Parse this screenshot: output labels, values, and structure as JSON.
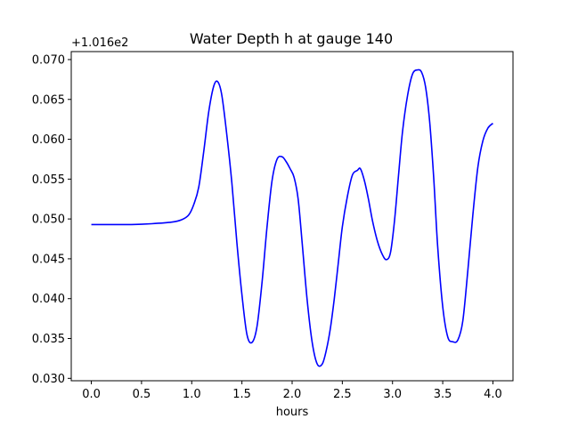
{
  "chart_data": {
    "type": "line",
    "title": "Water Depth h at gauge 140",
    "xlabel": "hours",
    "ylabel": "",
    "y_offset_label": "+1.016e2",
    "xlim": [
      -0.2,
      4.2
    ],
    "ylim": [
      0.0297,
      0.071
    ],
    "x_ticks": [
      0.0,
      0.5,
      1.0,
      1.5,
      2.0,
      2.5,
      3.0,
      3.5,
      4.0
    ],
    "x_tick_labels": [
      "0.0",
      "0.5",
      "1.0",
      "1.5",
      "2.0",
      "2.5",
      "3.0",
      "3.5",
      "4.0"
    ],
    "y_ticks": [
      0.03,
      0.035,
      0.04,
      0.045,
      0.05,
      0.055,
      0.06,
      0.065,
      0.07
    ],
    "y_tick_labels": [
      "0.030",
      "0.035",
      "0.040",
      "0.045",
      "0.050",
      "0.055",
      "0.060",
      "0.065",
      "0.070"
    ],
    "grid": false,
    "series": [
      {
        "color": "#0000ff",
        "x": [
          0.0,
          0.2,
          0.4,
          0.6,
          0.8,
          0.9,
          0.97,
          1.02,
          1.07,
          1.12,
          1.17,
          1.22,
          1.26,
          1.3,
          1.35,
          1.4,
          1.45,
          1.5,
          1.55,
          1.6,
          1.65,
          1.7,
          1.75,
          1.8,
          1.85,
          1.9,
          1.94,
          1.98,
          2.02,
          2.06,
          2.1,
          2.15,
          2.2,
          2.25,
          2.3,
          2.34,
          2.38,
          2.42,
          2.46,
          2.5,
          2.55,
          2.6,
          2.65,
          2.68,
          2.72,
          2.76,
          2.8,
          2.85,
          2.9,
          2.94,
          2.98,
          3.02,
          3.06,
          3.1,
          3.15,
          3.2,
          3.25,
          3.29,
          3.33,
          3.37,
          3.41,
          3.45,
          3.5,
          3.55,
          3.6,
          3.65,
          3.7,
          3.75,
          3.8,
          3.85,
          3.9,
          3.95,
          4.0
        ],
        "y": [
          0.0493,
          0.0493,
          0.0493,
          0.0494,
          0.0496,
          0.0499,
          0.0505,
          0.0518,
          0.054,
          0.0585,
          0.0635,
          0.0667,
          0.0672,
          0.0655,
          0.0605,
          0.0545,
          0.047,
          0.0405,
          0.0355,
          0.0345,
          0.0365,
          0.042,
          0.049,
          0.0548,
          0.0575,
          0.0578,
          0.0572,
          0.0563,
          0.0552,
          0.0525,
          0.047,
          0.0398,
          0.0345,
          0.0318,
          0.0318,
          0.0335,
          0.0362,
          0.04,
          0.0445,
          0.049,
          0.0528,
          0.0555,
          0.0561,
          0.0563,
          0.0548,
          0.0525,
          0.0498,
          0.0472,
          0.0455,
          0.0449,
          0.0458,
          0.0498,
          0.0555,
          0.061,
          0.0655,
          0.0682,
          0.0687,
          0.0684,
          0.0665,
          0.0622,
          0.0552,
          0.0465,
          0.039,
          0.0352,
          0.0346,
          0.0348,
          0.0372,
          0.0435,
          0.0505,
          0.0565,
          0.0598,
          0.0614,
          0.062
        ]
      }
    ]
  }
}
